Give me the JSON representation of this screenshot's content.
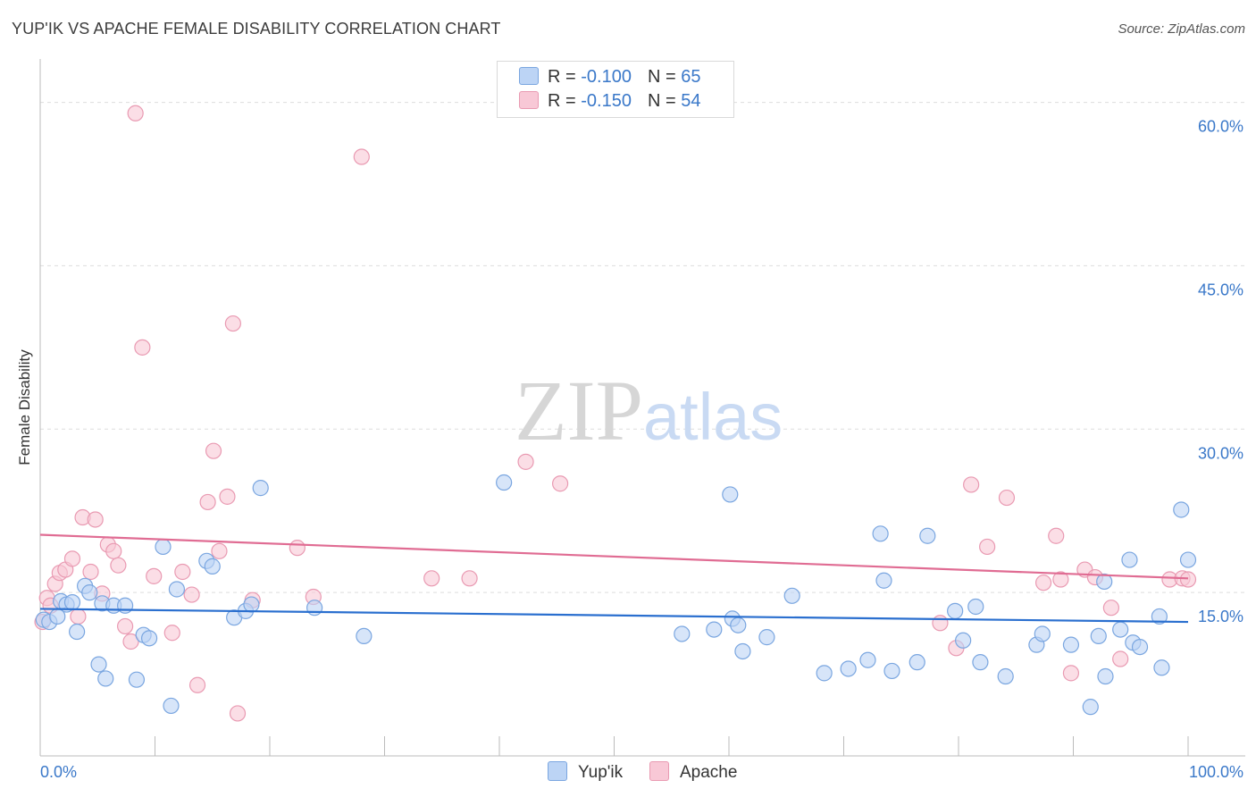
{
  "header": {
    "title": "YUP'IK VS APACHE FEMALE DISABILITY CORRELATION CHART",
    "source": "Source: ZipAtlas.com"
  },
  "watermark": {
    "zip": "ZIP",
    "atlas": "atlas"
  },
  "legend": {
    "rows": [
      {
        "r_label": "R = ",
        "r_value": "-0.100",
        "n_label": "N = ",
        "n_value": "65"
      },
      {
        "r_label": "R = ",
        "r_value": "-0.150",
        "n_label": "N = ",
        "n_value": "54"
      }
    ]
  },
  "colors": {
    "yupik_fill": "#bcd4f5",
    "yupik_stroke": "#7aa6e0",
    "yupik_line": "#2a6fcf",
    "apache_fill": "#f8c8d6",
    "apache_stroke": "#e99ab2",
    "apache_line": "#e06c93",
    "axis_text": "#3a78c9",
    "grid": "#dddddd"
  },
  "chart_data": {
    "type": "scatter",
    "title": "YUP'IK VS APACHE FEMALE DISABILITY CORRELATION CHART",
    "xlabel": "",
    "ylabel": "Female Disability",
    "xlim": [
      0,
      100
    ],
    "ylim": [
      0,
      63
    ],
    "x_tick_labels": [
      "0.0%",
      "100.0%"
    ],
    "y_ticks": [
      15,
      30,
      45,
      60
    ],
    "y_tick_labels": [
      "15.0%",
      "30.0%",
      "45.0%",
      "60.0%"
    ],
    "grid": "horizontal dashed",
    "legend_position": "top-center",
    "series": [
      {
        "name": "Yup'ik",
        "r": -0.1,
        "n": 65,
        "trend": {
          "x": [
            0,
            100
          ],
          "y": [
            13.5,
            12.3
          ]
        },
        "points": [
          [
            0.3,
            12.5
          ],
          [
            0.8,
            12.3
          ],
          [
            1.5,
            12.8
          ],
          [
            1.8,
            14.2
          ],
          [
            2.3,
            13.9
          ],
          [
            2.8,
            14.1
          ],
          [
            3.2,
            11.4
          ],
          [
            3.9,
            15.6
          ],
          [
            4.3,
            15.0
          ],
          [
            5.1,
            8.4
          ],
          [
            5.4,
            14.0
          ],
          [
            5.7,
            7.1
          ],
          [
            6.4,
            13.8
          ],
          [
            7.4,
            13.8
          ],
          [
            8.4,
            7.0
          ],
          [
            9.0,
            11.1
          ],
          [
            9.5,
            10.8
          ],
          [
            10.7,
            19.2
          ],
          [
            11.4,
            4.6
          ],
          [
            11.9,
            15.3
          ],
          [
            14.5,
            17.9
          ],
          [
            15.0,
            17.4
          ],
          [
            16.9,
            12.7
          ],
          [
            17.9,
            13.3
          ],
          [
            18.4,
            13.9
          ],
          [
            19.2,
            24.6
          ],
          [
            23.9,
            13.6
          ],
          [
            28.2,
            11.0
          ],
          [
            40.4,
            25.1
          ],
          [
            55.9,
            11.2
          ],
          [
            58.7,
            11.6
          ],
          [
            60.1,
            24.0
          ],
          [
            60.3,
            12.6
          ],
          [
            60.8,
            12.0
          ],
          [
            61.2,
            9.6
          ],
          [
            63.3,
            10.9
          ],
          [
            65.5,
            14.7
          ],
          [
            68.3,
            7.6
          ],
          [
            70.4,
            8.0
          ],
          [
            72.1,
            8.8
          ],
          [
            73.2,
            20.4
          ],
          [
            73.5,
            16.1
          ],
          [
            74.2,
            7.8
          ],
          [
            76.4,
            8.6
          ],
          [
            77.3,
            20.2
          ],
          [
            79.7,
            13.3
          ],
          [
            80.4,
            10.6
          ],
          [
            81.5,
            13.7
          ],
          [
            81.9,
            8.6
          ],
          [
            84.1,
            7.3
          ],
          [
            86.8,
            10.2
          ],
          [
            87.3,
            11.2
          ],
          [
            89.8,
            10.2
          ],
          [
            91.5,
            4.5
          ],
          [
            92.2,
            11.0
          ],
          [
            92.7,
            16.0
          ],
          [
            92.8,
            7.3
          ],
          [
            94.1,
            11.6
          ],
          [
            94.9,
            18.0
          ],
          [
            95.2,
            10.4
          ],
          [
            95.8,
            10.0
          ],
          [
            97.5,
            12.8
          ],
          [
            97.7,
            8.1
          ],
          [
            99.4,
            22.6
          ],
          [
            100.0,
            18.0
          ]
        ]
      },
      {
        "name": "Apache",
        "r": -0.15,
        "n": 54,
        "trend": {
          "x": [
            0,
            100
          ],
          "y": [
            20.3,
            16.3
          ]
        },
        "points": [
          [
            0.2,
            12.3
          ],
          [
            0.6,
            14.5
          ],
          [
            0.9,
            13.8
          ],
          [
            1.3,
            15.8
          ],
          [
            1.7,
            16.8
          ],
          [
            2.2,
            17.1
          ],
          [
            2.8,
            18.1
          ],
          [
            3.3,
            12.8
          ],
          [
            3.7,
            21.9
          ],
          [
            4.4,
            16.9
          ],
          [
            4.8,
            21.7
          ],
          [
            5.4,
            14.9
          ],
          [
            5.9,
            19.4
          ],
          [
            6.4,
            18.8
          ],
          [
            6.8,
            17.5
          ],
          [
            7.4,
            11.9
          ],
          [
            7.9,
            10.5
          ],
          [
            8.3,
            59.0
          ],
          [
            8.9,
            37.5
          ],
          [
            9.9,
            16.5
          ],
          [
            11.5,
            11.3
          ],
          [
            12.4,
            16.9
          ],
          [
            13.2,
            14.8
          ],
          [
            13.7,
            6.5
          ],
          [
            14.6,
            23.3
          ],
          [
            15.1,
            28.0
          ],
          [
            15.6,
            18.8
          ],
          [
            16.3,
            23.8
          ],
          [
            16.8,
            39.7
          ],
          [
            17.2,
            3.9
          ],
          [
            18.5,
            14.3
          ],
          [
            22.4,
            19.1
          ],
          [
            23.8,
            14.6
          ],
          [
            28.0,
            55.0
          ],
          [
            34.1,
            16.3
          ],
          [
            37.4,
            16.3
          ],
          [
            42.3,
            27.0
          ],
          [
            45.3,
            25.0
          ],
          [
            78.4,
            12.2
          ],
          [
            79.8,
            9.9
          ],
          [
            81.1,
            24.9
          ],
          [
            82.5,
            19.2
          ],
          [
            84.2,
            23.7
          ],
          [
            87.4,
            15.9
          ],
          [
            88.5,
            20.2
          ],
          [
            88.9,
            16.2
          ],
          [
            89.8,
            7.6
          ],
          [
            91.0,
            17.1
          ],
          [
            91.9,
            16.4
          ],
          [
            93.3,
            13.6
          ],
          [
            94.1,
            8.9
          ],
          [
            98.4,
            16.2
          ],
          [
            99.5,
            16.3
          ],
          [
            100.0,
            16.2
          ]
        ]
      }
    ]
  }
}
